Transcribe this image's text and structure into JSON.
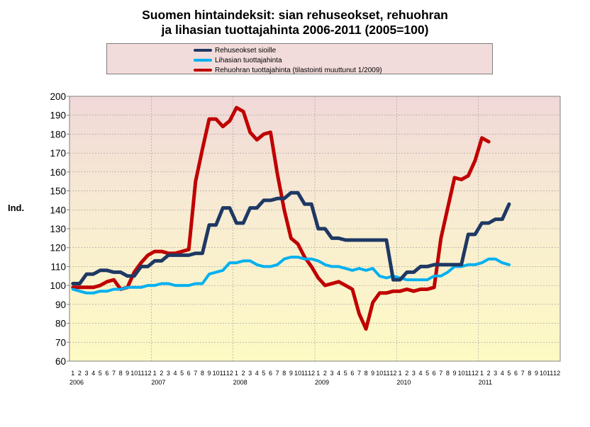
{
  "chart_data": {
    "type": "line",
    "title_line1": "Suomen hintaindeksit: sian rehuseokset, rehuohran",
    "title_line2": "ja lihasian tuottajahinta  2006-2011 (2005=100)",
    "ylabel": "Ind.",
    "ylim": [
      60,
      200
    ],
    "yticks": [
      60,
      70,
      80,
      90,
      100,
      110,
      120,
      130,
      140,
      150,
      160,
      170,
      180,
      190,
      200
    ],
    "month_labels": [
      "1",
      "2",
      "3",
      "4",
      "5",
      "6",
      "7",
      "8",
      "9",
      "10",
      "11",
      "12"
    ],
    "years": [
      "2006",
      "2007",
      "2008",
      "2009",
      "2010",
      "2011"
    ],
    "x_count": 72,
    "series": [
      {
        "name": "Rehuseokset sioille",
        "color": "#1f3864",
        "values": [
          101,
          101,
          106,
          106,
          108,
          108,
          107,
          107,
          105,
          105,
          110,
          110,
          113,
          113,
          116,
          116,
          116,
          116,
          117,
          117,
          132,
          132,
          141,
          141,
          133,
          133,
          141,
          141,
          145,
          145,
          146,
          146,
          149,
          149,
          143,
          143,
          130,
          130,
          125,
          125,
          124,
          124,
          124,
          124,
          124,
          124,
          124,
          103,
          103,
          107,
          107,
          110,
          110,
          111,
          111,
          111,
          111,
          111,
          127,
          127,
          133,
          133,
          135,
          135,
          143,
          null,
          null,
          null,
          null,
          null,
          null,
          null
        ]
      },
      {
        "name": "Lihasian tuottajahinta",
        "color": "#00b0f0",
        "values": [
          98,
          97,
          96,
          96,
          97,
          97,
          98,
          98,
          99,
          99,
          99,
          100,
          100,
          101,
          101,
          100,
          100,
          100,
          101,
          101,
          106,
          107,
          108,
          112,
          112,
          113,
          113,
          111,
          110,
          110,
          111,
          114,
          115,
          115,
          114,
          114,
          113,
          111,
          110,
          110,
          109,
          108,
          109,
          108,
          109,
          105,
          104,
          105,
          104,
          103,
          103,
          103,
          103,
          105,
          105,
          107,
          110,
          110,
          111,
          111,
          112,
          114,
          114,
          112,
          111,
          null,
          null,
          null,
          null,
          null,
          null,
          null
        ]
      },
      {
        "name": "Rehuohran tuottajahinta (tilastointi muuttunut 1/2009)",
        "color": "#c00000",
        "values": [
          99,
          99,
          99,
          99,
          100,
          102,
          103,
          98,
          99,
          107,
          112,
          116,
          118,
          118,
          117,
          117,
          118,
          119,
          155,
          172,
          188,
          188,
          184,
          187,
          194,
          192,
          181,
          177,
          180,
          181,
          159,
          140,
          125,
          122,
          115,
          110,
          104,
          100,
          101,
          102,
          100,
          98,
          85,
          77,
          91,
          96,
          96,
          97,
          97,
          98,
          97,
          98,
          98,
          99,
          125,
          141,
          157,
          156,
          158,
          166,
          178,
          176,
          null,
          null,
          null,
          null,
          null,
          null,
          null,
          null,
          null,
          null
        ]
      }
    ]
  }
}
